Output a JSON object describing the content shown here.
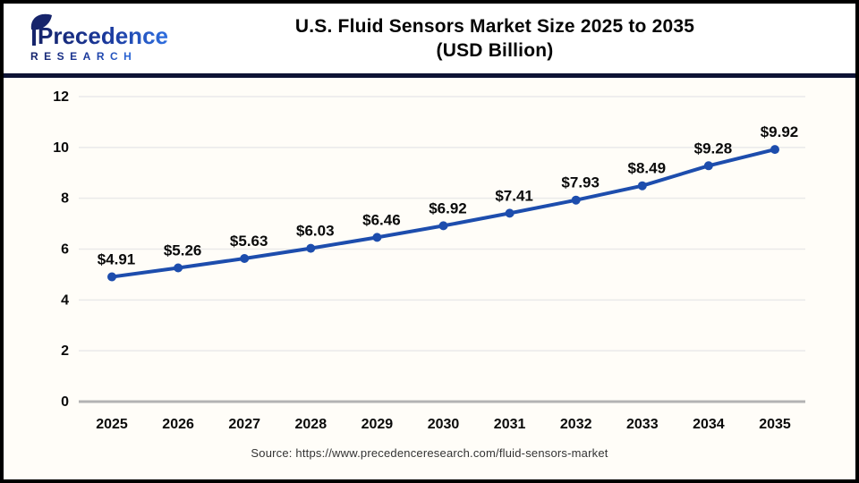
{
  "header": {
    "logo": {
      "name": "Precedence",
      "word2": "RESEARCH",
      "navy": "#16246b",
      "blue": "#2f6fe0"
    },
    "divider_color": "#0d1335"
  },
  "chart_data": {
    "type": "line",
    "title": "U.S. Fluid Sensors Market Size 2025 to 2035",
    "subtitle": "(USD Billion)",
    "categories": [
      "2025",
      "2026",
      "2027",
      "2028",
      "2029",
      "2030",
      "2031",
      "2032",
      "2033",
      "2034",
      "2035"
    ],
    "values": [
      4.91,
      5.26,
      5.63,
      6.03,
      6.46,
      6.92,
      7.41,
      7.93,
      8.49,
      9.28,
      9.92
    ],
    "value_prefix": "$",
    "ylim": [
      0,
      12
    ],
    "yticks": [
      0,
      2,
      4,
      6,
      8,
      10,
      12
    ],
    "grid": true,
    "legend_position": "none",
    "line_color": "#1d4dad",
    "marker_color": "#1d4dad",
    "data_label_color": "#0a0a0a",
    "tick_label_color": "#0a0a0a",
    "grid_color": "#eaeaea",
    "axis_line_color": "#b3b3b3"
  },
  "footer": {
    "source": "Source: https://www.precedenceresearch.com/fluid-sensors-market"
  }
}
